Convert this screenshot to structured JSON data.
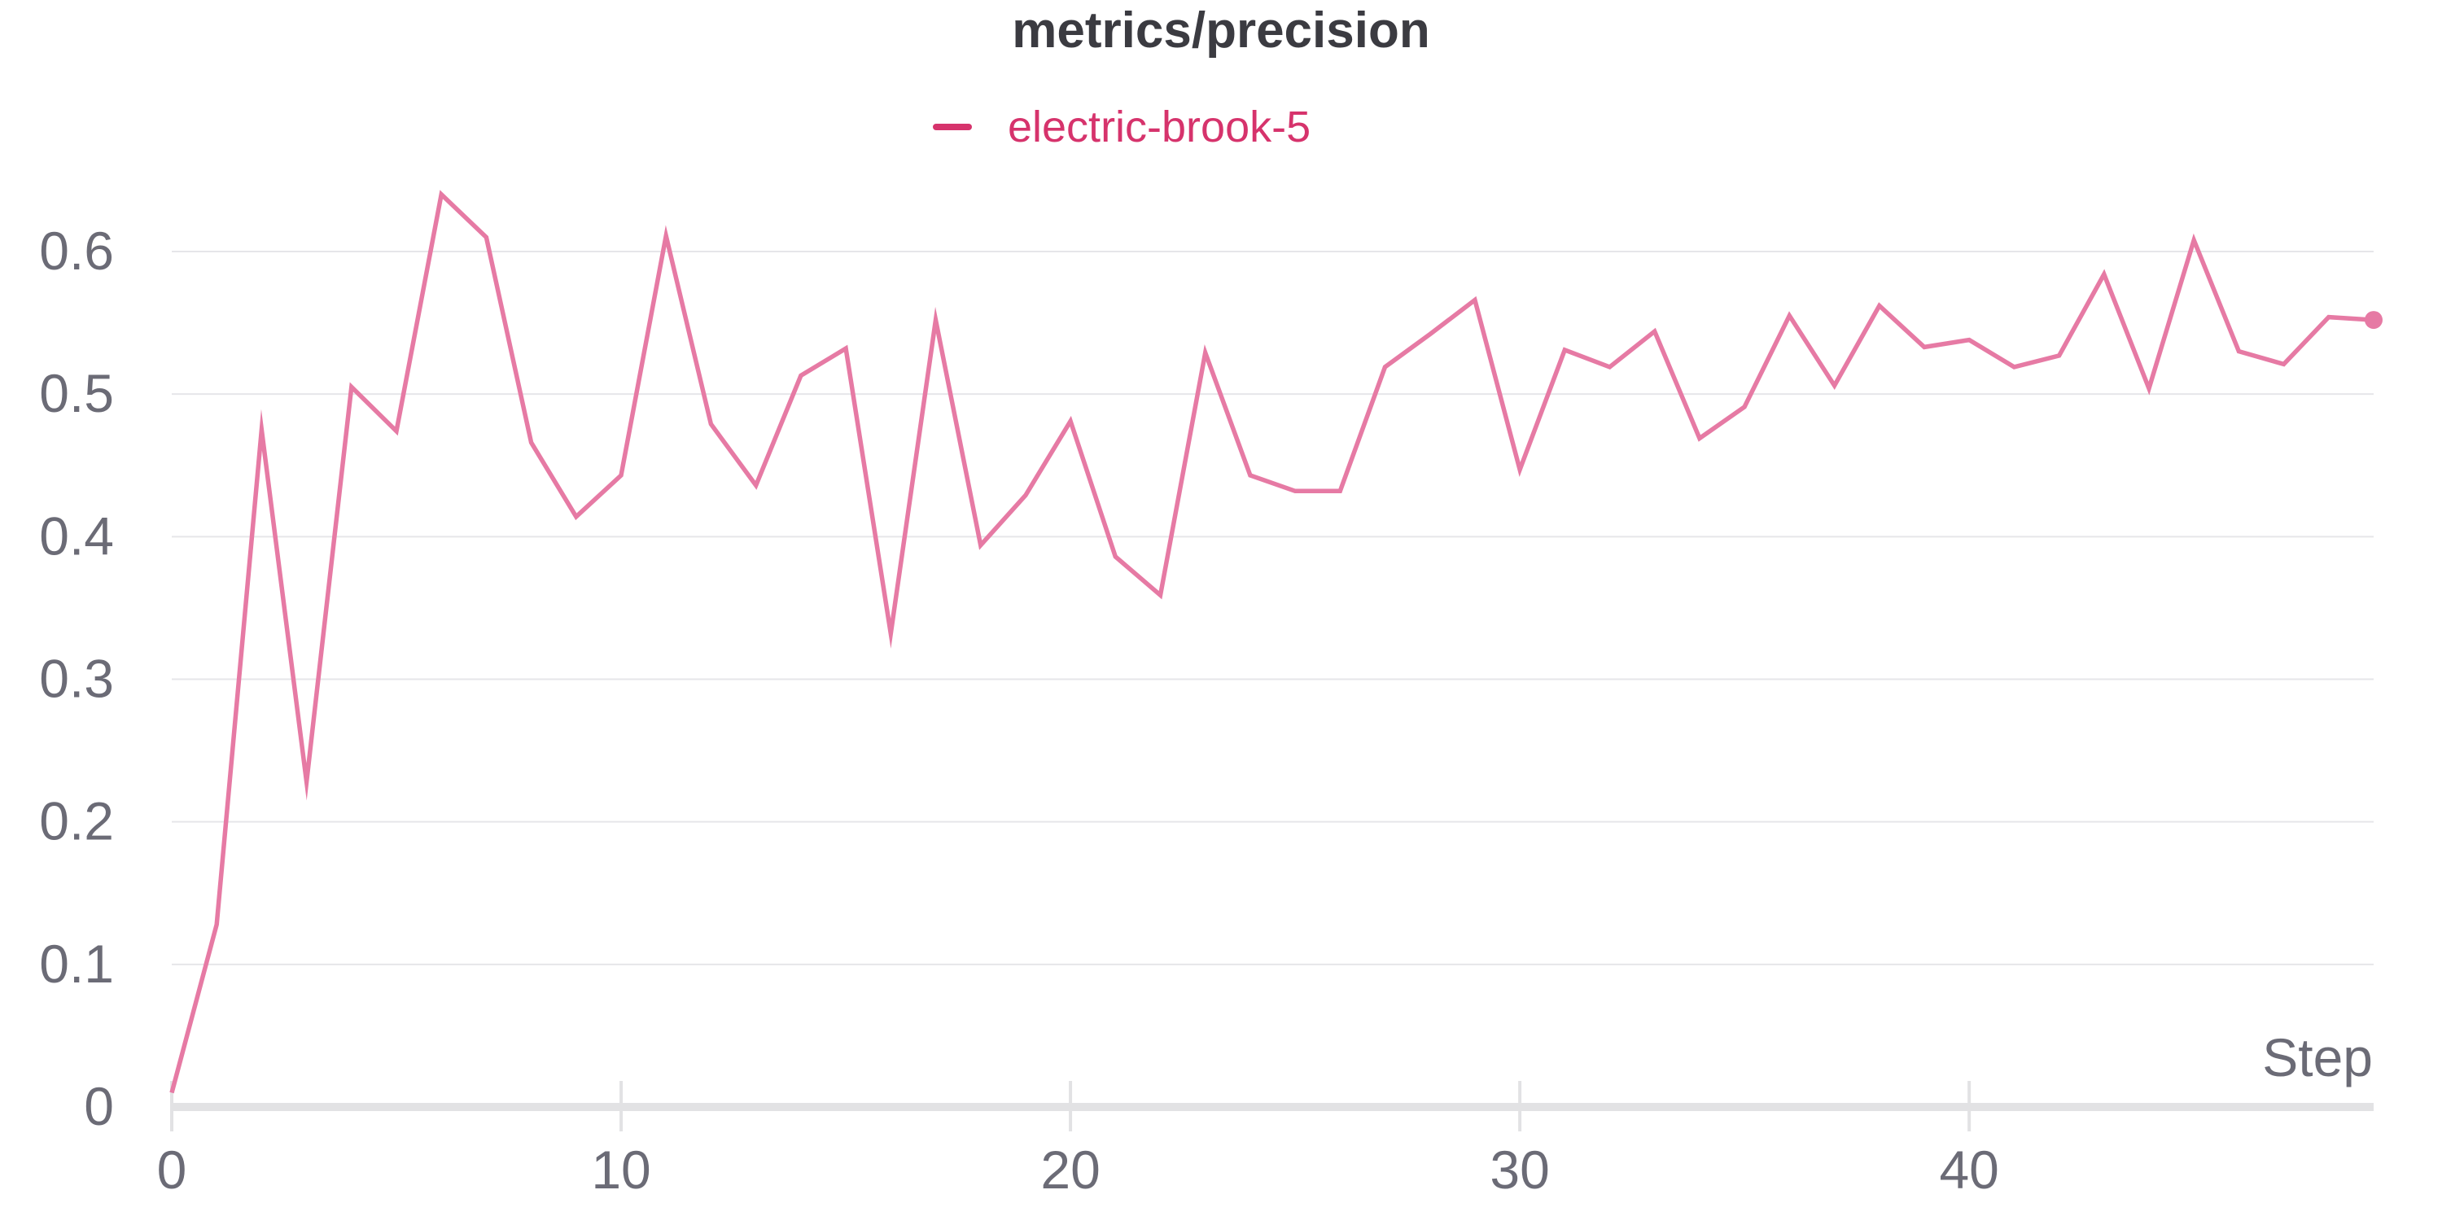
{
  "chart_data": {
    "type": "line",
    "title": "metrics/precision",
    "xlabel": "Step",
    "ylabel": "",
    "xlim": [
      0,
      49
    ],
    "ylim": [
      0,
      0.65
    ],
    "x_ticks": [
      0,
      10,
      20,
      30,
      40
    ],
    "y_ticks": [
      0,
      0.1,
      0.2,
      0.3,
      0.4,
      0.5,
      0.6
    ],
    "x_tick_labels": [
      "0",
      "10",
      "20",
      "30",
      "40"
    ],
    "y_tick_labels": [
      "0",
      "0.1",
      "0.2",
      "0.3",
      "0.4",
      "0.5",
      "0.6"
    ],
    "grid": true,
    "legend_position": "top-center",
    "series": [
      {
        "name": "electric-brook-5",
        "color": "#e67aa4",
        "legend_color": "#d6336c",
        "x": [
          0,
          1,
          2,
          3,
          4,
          5,
          6,
          7,
          8,
          9,
          10,
          11,
          12,
          13,
          14,
          15,
          16,
          17,
          18,
          19,
          20,
          21,
          22,
          23,
          24,
          25,
          26,
          27,
          28,
          29,
          30,
          31,
          32,
          33,
          34,
          35,
          36,
          37,
          38,
          39,
          40,
          41,
          42,
          43,
          44,
          45,
          46,
          47,
          48,
          49
        ],
        "values": [
          0.01,
          0.128,
          0.475,
          0.228,
          0.505,
          0.474,
          0.64,
          0.61,
          0.466,
          0.414,
          0.443,
          0.611,
          0.479,
          0.436,
          0.513,
          0.532,
          0.332,
          0.552,
          0.394,
          0.429,
          0.481,
          0.386,
          0.359,
          0.529,
          0.443,
          0.432,
          0.432,
          0.519,
          0.542,
          0.566,
          0.447,
          0.531,
          0.519,
          0.544,
          0.469,
          0.491,
          0.555,
          0.506,
          0.562,
          0.533,
          0.538,
          0.519,
          0.527,
          0.584,
          0.504,
          0.608,
          0.53,
          0.521,
          0.554,
          0.552
        ]
      }
    ]
  }
}
